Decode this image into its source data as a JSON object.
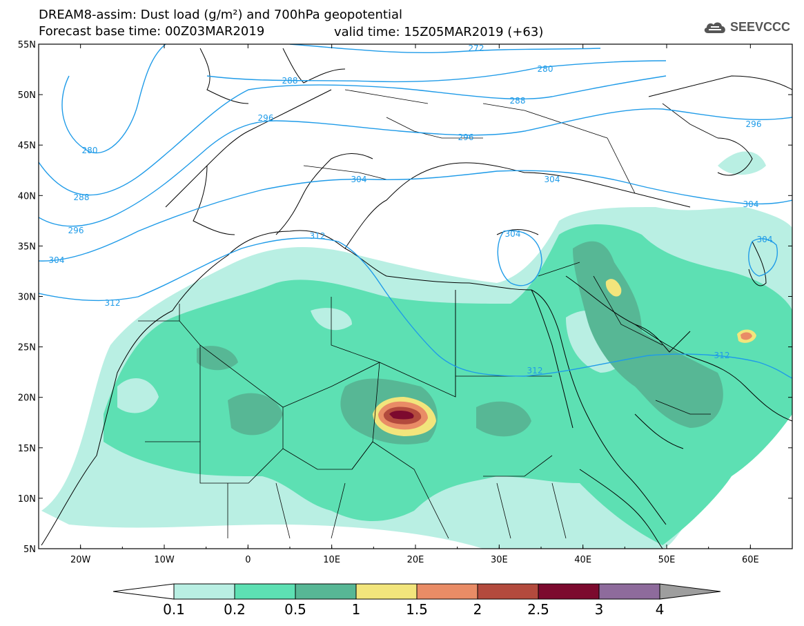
{
  "title_line1": "DREAM8-assim: Dust load (g/m²) and 700hPa geopotential",
  "title_line2_left": "Forecast base time: 00Z03MAR2019",
  "title_line2_right": "valid time: 15Z05MAR2019 (+63)",
  "logo": {
    "text": "SEEVCCC",
    "icon": "cloud-icon",
    "color": "#555555"
  },
  "map": {
    "lon_range": [
      -25,
      65
    ],
    "lat_range": [
      5,
      55
    ],
    "lat_ticks": [
      "55N",
      "50N",
      "45N",
      "40N",
      "35N",
      "30N",
      "25N",
      "20N",
      "15N",
      "10N",
      "5N"
    ],
    "lon_ticks": [
      "20W",
      "10W",
      "0",
      "10E",
      "20E",
      "30E",
      "40E",
      "50E",
      "60E"
    ],
    "contour_labels": [
      "272",
      "280",
      "288",
      "288",
      "296",
      "296",
      "280",
      "288",
      "296",
      "304",
      "304",
      "304",
      "304",
      "296",
      "312",
      "304",
      "312",
      "312",
      "312",
      "304"
    ]
  },
  "colorbar": {
    "labels": [
      "0.1",
      "0.2",
      "0.5",
      "1",
      "1.5",
      "2",
      "2.5",
      "3",
      "4"
    ],
    "colors": [
      "#b9efe3",
      "#5de0b3",
      "#57b795",
      "#f2e57c",
      "#e98c66",
      "#b34a3d",
      "#7c0a2e",
      "#8e6b9c",
      "#9e9e9e"
    ]
  },
  "colors": {
    "contour": "#1f9be8",
    "border": "#000000",
    "low": "#b9efe3",
    "mid": "#5de0b3",
    "high": "#57b795",
    "yellow": "#f2e57c",
    "orange": "#e98c66",
    "red": "#b34a3d",
    "darkred": "#7c0a2e"
  }
}
